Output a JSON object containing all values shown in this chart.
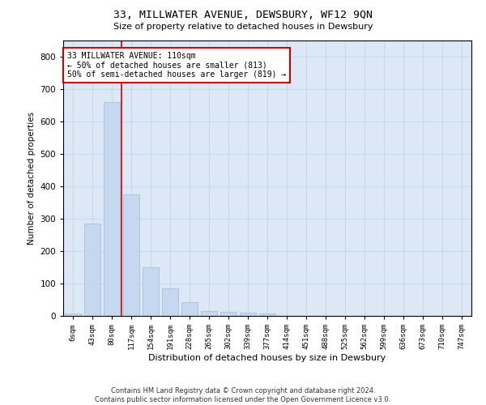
{
  "title": "33, MILLWATER AVENUE, DEWSBURY, WF12 9QN",
  "subtitle": "Size of property relative to detached houses in Dewsbury",
  "xlabel": "Distribution of detached houses by size in Dewsbury",
  "ylabel": "Number of detached properties",
  "bar_color": "#c5d8f0",
  "bar_edge_color": "#a0bcd8",
  "categories": [
    "6sqm",
    "43sqm",
    "80sqm",
    "117sqm",
    "154sqm",
    "191sqm",
    "228sqm",
    "265sqm",
    "302sqm",
    "339sqm",
    "377sqm",
    "414sqm",
    "451sqm",
    "488sqm",
    "525sqm",
    "562sqm",
    "599sqm",
    "636sqm",
    "673sqm",
    "710sqm",
    "747sqm"
  ],
  "values": [
    8,
    285,
    660,
    375,
    150,
    85,
    42,
    14,
    12,
    10,
    8,
    0,
    0,
    0,
    0,
    0,
    0,
    0,
    0,
    0,
    0
  ],
  "ylim": [
    0,
    850
  ],
  "yticks": [
    0,
    100,
    200,
    300,
    400,
    500,
    600,
    700,
    800
  ],
  "red_line_x": 2.5,
  "annotation_text": "33 MILLWATER AVENUE: 110sqm\n← 50% of detached houses are smaller (813)\n50% of semi-detached houses are larger (819) →",
  "annotation_box_color": "#ffffff",
  "annotation_box_edge": "#cc0000",
  "footer_text": "Contains HM Land Registry data © Crown copyright and database right 2024.\nContains public sector information licensed under the Open Government Licence v3.0.",
  "grid_color": "#c8d8e8",
  "background_color": "#dce8f5"
}
